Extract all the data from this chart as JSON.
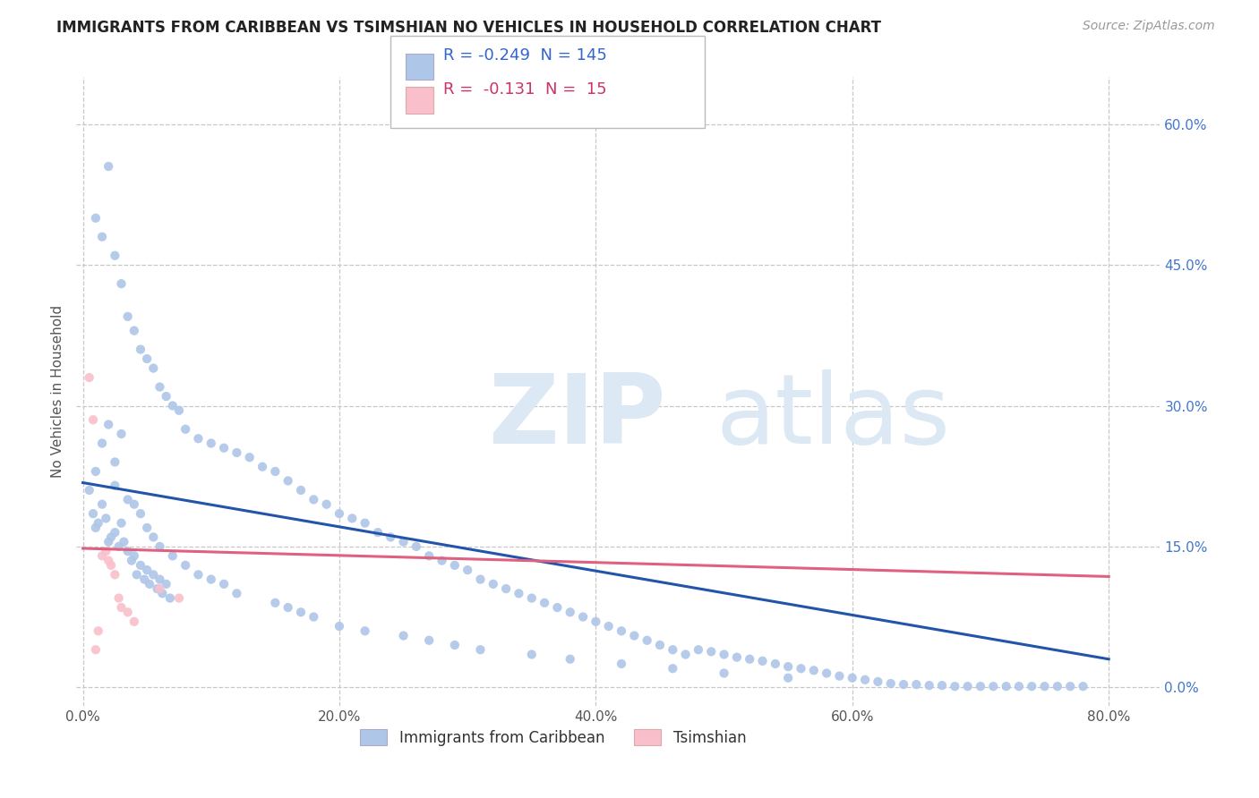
{
  "title": "IMMIGRANTS FROM CARIBBEAN VS TSIMSHIAN NO VEHICLES IN HOUSEHOLD CORRELATION CHART",
  "source": "Source: ZipAtlas.com",
  "xlabel_ticks": [
    "0.0%",
    "20.0%",
    "40.0%",
    "60.0%",
    "80.0%"
  ],
  "xlabel_tick_vals": [
    0.0,
    0.2,
    0.4,
    0.6,
    0.8
  ],
  "ylabel_ticks": [
    "0.0%",
    "15.0%",
    "30.0%",
    "45.0%",
    "60.0%"
  ],
  "ylabel_tick_vals": [
    0.0,
    0.15,
    0.3,
    0.45,
    0.6
  ],
  "ylabel_label": "No Vehicles in Household",
  "legend_entries": [
    {
      "label": "Immigrants from Caribbean",
      "color": "#aec6e8",
      "R": "-0.249",
      "N": "145"
    },
    {
      "label": "Tsimshian",
      "color": "#f9c0cb",
      "R": "-0.131",
      "N": " 15"
    }
  ],
  "watermark_zip": "ZIP",
  "watermark_atlas": "atlas",
  "blue_scatter_x": [
    0.005,
    0.008,
    0.01,
    0.012,
    0.015,
    0.018,
    0.02,
    0.022,
    0.025,
    0.028,
    0.03,
    0.032,
    0.035,
    0.038,
    0.04,
    0.042,
    0.045,
    0.048,
    0.05,
    0.052,
    0.055,
    0.058,
    0.06,
    0.062,
    0.065,
    0.068,
    0.01,
    0.015,
    0.02,
    0.025,
    0.03,
    0.035,
    0.04,
    0.045,
    0.05,
    0.055,
    0.06,
    0.065,
    0.07,
    0.075,
    0.08,
    0.09,
    0.1,
    0.11,
    0.12,
    0.13,
    0.14,
    0.15,
    0.16,
    0.17,
    0.18,
    0.19,
    0.2,
    0.21,
    0.22,
    0.23,
    0.24,
    0.25,
    0.26,
    0.27,
    0.28,
    0.29,
    0.3,
    0.31,
    0.32,
    0.33,
    0.34,
    0.35,
    0.36,
    0.37,
    0.38,
    0.39,
    0.4,
    0.41,
    0.42,
    0.43,
    0.44,
    0.45,
    0.46,
    0.47,
    0.48,
    0.49,
    0.5,
    0.51,
    0.52,
    0.53,
    0.54,
    0.55,
    0.56,
    0.57,
    0.58,
    0.59,
    0.6,
    0.61,
    0.62,
    0.63,
    0.64,
    0.65,
    0.66,
    0.67,
    0.68,
    0.69,
    0.7,
    0.71,
    0.72,
    0.73,
    0.74,
    0.75,
    0.76,
    0.77,
    0.78,
    0.025,
    0.03,
    0.02,
    0.015,
    0.01,
    0.025,
    0.035,
    0.04,
    0.045,
    0.05,
    0.055,
    0.06,
    0.07,
    0.08,
    0.09,
    0.1,
    0.11,
    0.12,
    0.15,
    0.16,
    0.17,
    0.18,
    0.2,
    0.22,
    0.25,
    0.27,
    0.29,
    0.31,
    0.35,
    0.38,
    0.42,
    0.46,
    0.5,
    0.55
  ],
  "blue_scatter_y": [
    0.21,
    0.185,
    0.17,
    0.175,
    0.195,
    0.18,
    0.155,
    0.16,
    0.165,
    0.15,
    0.175,
    0.155,
    0.145,
    0.135,
    0.14,
    0.12,
    0.13,
    0.115,
    0.125,
    0.11,
    0.12,
    0.105,
    0.115,
    0.1,
    0.11,
    0.095,
    0.5,
    0.48,
    0.555,
    0.46,
    0.43,
    0.395,
    0.38,
    0.36,
    0.35,
    0.34,
    0.32,
    0.31,
    0.3,
    0.295,
    0.275,
    0.265,
    0.26,
    0.255,
    0.25,
    0.245,
    0.235,
    0.23,
    0.22,
    0.21,
    0.2,
    0.195,
    0.185,
    0.18,
    0.175,
    0.165,
    0.16,
    0.155,
    0.15,
    0.14,
    0.135,
    0.13,
    0.125,
    0.115,
    0.11,
    0.105,
    0.1,
    0.095,
    0.09,
    0.085,
    0.08,
    0.075,
    0.07,
    0.065,
    0.06,
    0.055,
    0.05,
    0.045,
    0.04,
    0.035,
    0.04,
    0.038,
    0.035,
    0.032,
    0.03,
    0.028,
    0.025,
    0.022,
    0.02,
    0.018,
    0.015,
    0.012,
    0.01,
    0.008,
    0.006,
    0.004,
    0.003,
    0.003,
    0.002,
    0.002,
    0.001,
    0.001,
    0.001,
    0.001,
    0.001,
    0.001,
    0.001,
    0.001,
    0.001,
    0.001,
    0.001,
    0.24,
    0.27,
    0.28,
    0.26,
    0.23,
    0.215,
    0.2,
    0.195,
    0.185,
    0.17,
    0.16,
    0.15,
    0.14,
    0.13,
    0.12,
    0.115,
    0.11,
    0.1,
    0.09,
    0.085,
    0.08,
    0.075,
    0.065,
    0.06,
    0.055,
    0.05,
    0.045,
    0.04,
    0.035,
    0.03,
    0.025,
    0.02,
    0.015,
    0.01
  ],
  "pink_scatter_x": [
    0.005,
    0.008,
    0.01,
    0.012,
    0.015,
    0.018,
    0.02,
    0.022,
    0.025,
    0.028,
    0.03,
    0.035,
    0.04,
    0.06,
    0.075
  ],
  "pink_scatter_y": [
    0.33,
    0.285,
    0.04,
    0.06,
    0.14,
    0.145,
    0.135,
    0.13,
    0.12,
    0.095,
    0.085,
    0.08,
    0.07,
    0.105,
    0.095
  ],
  "blue_line_x": [
    0.0,
    0.8
  ],
  "blue_line_y_start": 0.218,
  "blue_line_y_end": 0.03,
  "pink_line_x": [
    0.0,
    0.8
  ],
  "pink_line_y_start": 0.148,
  "pink_line_y_end": 0.118,
  "scatter_color_blue": "#aec6e8",
  "scatter_color_pink": "#f9c0cb",
  "line_color_blue": "#2255aa",
  "line_color_pink": "#e06080",
  "bg_color": "#ffffff",
  "grid_color": "#c8c8c8",
  "xlim": [
    -0.005,
    0.84
  ],
  "ylim": [
    -0.02,
    0.65
  ],
  "title_fontsize": 12,
  "source_fontsize": 10,
  "tick_fontsize": 11,
  "ylabel_fontsize": 11
}
